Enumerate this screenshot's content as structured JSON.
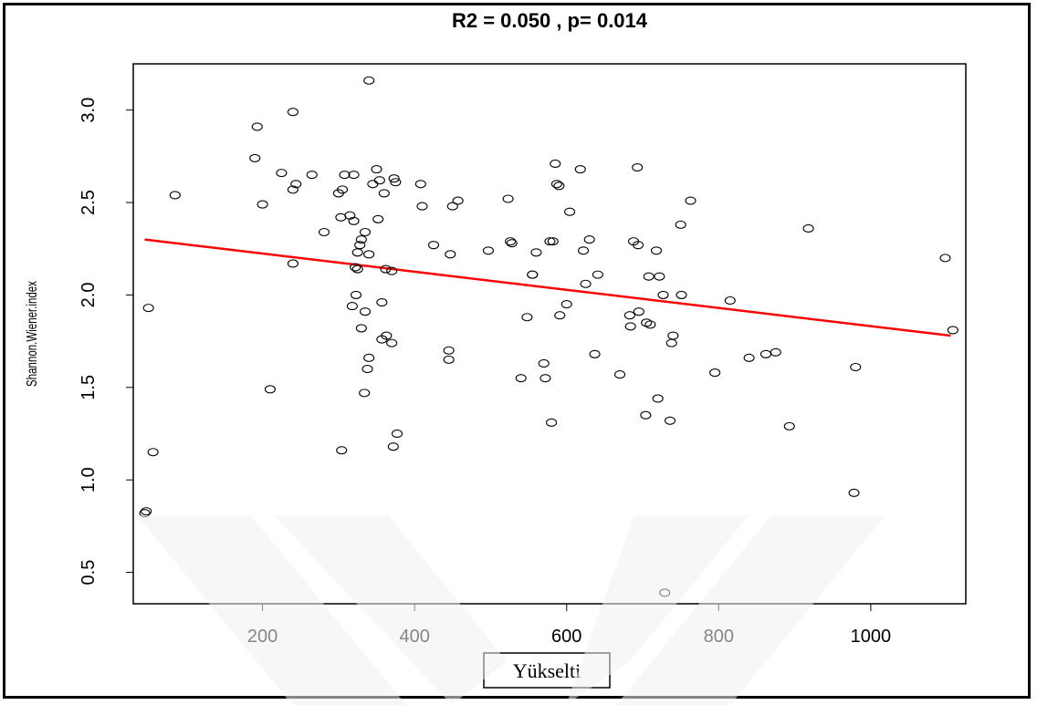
{
  "chart_data": {
    "type": "scatter",
    "title": "R2 = 0.050 , p= 0.014",
    "xlabel": "Yükselti",
    "ylabel": "Shannon.Wiener.index",
    "xlim": [
      30,
      1125
    ],
    "ylim": [
      0.33,
      3.25
    ],
    "x_ticks": [
      200,
      400,
      600,
      800,
      1000
    ],
    "x_tick_labels": [
      "200",
      "400",
      "600",
      "800",
      "1000"
    ],
    "y_ticks": [
      0.5,
      1.0,
      1.5,
      2.0,
      2.5,
      3.0
    ],
    "y_tick_labels": [
      "0.5",
      "1.0",
      "1.5",
      "2.0",
      "2.5",
      "3.0"
    ],
    "grid": false,
    "point_color": "#000000",
    "trend_color": "#ff0000",
    "points": [
      [
        45,
        0.82
      ],
      [
        47,
        0.83
      ],
      [
        50,
        1.93
      ],
      [
        56,
        1.15
      ],
      [
        85,
        2.54
      ],
      [
        190,
        2.74
      ],
      [
        193,
        2.91
      ],
      [
        200,
        2.49
      ],
      [
        210,
        1.49
      ],
      [
        225,
        2.66
      ],
      [
        240,
        2.99
      ],
      [
        240,
        2.57
      ],
      [
        240,
        2.17
      ],
      [
        244,
        2.6
      ],
      [
        265,
        2.65
      ],
      [
        281,
        2.34
      ],
      [
        300,
        2.55
      ],
      [
        303,
        2.42
      ],
      [
        304,
        1.16
      ],
      [
        305,
        2.57
      ],
      [
        308,
        2.65
      ],
      [
        315,
        2.43
      ],
      [
        318,
        1.94
      ],
      [
        320,
        2.4
      ],
      [
        320,
        2.65
      ],
      [
        322,
        2.15
      ],
      [
        323,
        2.0
      ],
      [
        325,
        2.14
      ],
      [
        325,
        2.23
      ],
      [
        328,
        2.27
      ],
      [
        330,
        2.3
      ],
      [
        330,
        1.82
      ],
      [
        334,
        1.47
      ],
      [
        335,
        2.34
      ],
      [
        335,
        1.91
      ],
      [
        338,
        1.6
      ],
      [
        340,
        2.22
      ],
      [
        340,
        3.16
      ],
      [
        340,
        1.66
      ],
      [
        345,
        2.6
      ],
      [
        350,
        2.68
      ],
      [
        352,
        2.41
      ],
      [
        354,
        2.62
      ],
      [
        357,
        1.96
      ],
      [
        357,
        1.76
      ],
      [
        360,
        2.55
      ],
      [
        362,
        2.14
      ],
      [
        363,
        1.78
      ],
      [
        370,
        2.13
      ],
      [
        370,
        1.74
      ],
      [
        372,
        1.18
      ],
      [
        373,
        2.63
      ],
      [
        375,
        2.61
      ],
      [
        377,
        1.25
      ],
      [
        408,
        2.6
      ],
      [
        410,
        2.48
      ],
      [
        425,
        2.27
      ],
      [
        445,
        1.7
      ],
      [
        445,
        1.65
      ],
      [
        447,
        2.22
      ],
      [
        450,
        2.48
      ],
      [
        457,
        2.51
      ],
      [
        497,
        2.24
      ],
      [
        523,
        2.52
      ],
      [
        526,
        2.29
      ],
      [
        528,
        2.28
      ],
      [
        540,
        1.55
      ],
      [
        548,
        1.88
      ],
      [
        555,
        2.11
      ],
      [
        555,
        2.11
      ],
      [
        560,
        2.23
      ],
      [
        570,
        1.63
      ],
      [
        572,
        1.55
      ],
      [
        578,
        2.29
      ],
      [
        580,
        1.31
      ],
      [
        582,
        2.29
      ],
      [
        585,
        2.71
      ],
      [
        587,
        2.6
      ],
      [
        590,
        2.59
      ],
      [
        591,
        1.89
      ],
      [
        600,
        1.95
      ],
      [
        604,
        2.45
      ],
      [
        618,
        2.68
      ],
      [
        622,
        2.24
      ],
      [
        625,
        2.06
      ],
      [
        630,
        2.3
      ],
      [
        637,
        1.68
      ],
      [
        641,
        2.11
      ],
      [
        670,
        1.57
      ],
      [
        683,
        1.89
      ],
      [
        684,
        1.83
      ],
      [
        688,
        2.29
      ],
      [
        693,
        2.69
      ],
      [
        694,
        2.27
      ],
      [
        695,
        1.91
      ],
      [
        704,
        1.35
      ],
      [
        705,
        1.85
      ],
      [
        708,
        2.1
      ],
      [
        710,
        1.84
      ],
      [
        718,
        2.24
      ],
      [
        720,
        1.44
      ],
      [
        722,
        2.1
      ],
      [
        727,
        2.0
      ],
      [
        729,
        0.39
      ],
      [
        736,
        1.32
      ],
      [
        738,
        1.74
      ],
      [
        740,
        1.78
      ],
      [
        750,
        2.38
      ],
      [
        751,
        2.0
      ],
      [
        763,
        2.51
      ],
      [
        795,
        1.58
      ],
      [
        815,
        1.97
      ],
      [
        840,
        1.66
      ],
      [
        862,
        1.68
      ],
      [
        875,
        1.69
      ],
      [
        893,
        1.29
      ],
      [
        918,
        2.36
      ],
      [
        978,
        0.93
      ],
      [
        980,
        1.61
      ],
      [
        1098,
        2.2
      ],
      [
        1108,
        1.81
      ]
    ],
    "trend_line": [
      [
        45,
        2.3
      ],
      [
        1105,
        1.78
      ]
    ]
  }
}
